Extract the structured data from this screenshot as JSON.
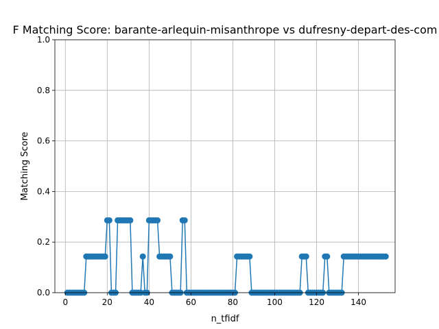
{
  "chart_data": {
    "type": "line",
    "title": "F Matching Score: barante-arlequin-misanthrope vs dufresny-depart-des-com",
    "xlabel": "n_tfidf",
    "ylabel": "Matching Score",
    "xlim": [
      -5,
      157.5
    ],
    "ylim": [
      0,
      1.0
    ],
    "xticks": [
      0,
      20,
      40,
      60,
      80,
      100,
      120,
      140
    ],
    "yticks": [
      0.0,
      0.2,
      0.4,
      0.6,
      0.8,
      1.0
    ],
    "ytick_labels": [
      "0.0",
      "0.2",
      "0.4",
      "0.6",
      "0.8",
      "1.0"
    ],
    "grid": true,
    "color": "#1f77b4",
    "marker": "circle",
    "x_start": 1,
    "x_step": 1,
    "y_values": [
      0,
      0,
      0,
      0,
      0,
      0,
      0,
      0,
      0,
      0.143,
      0.143,
      0.143,
      0.143,
      0.143,
      0.143,
      0.143,
      0.143,
      0.143,
      0.143,
      0.286,
      0.286,
      0,
      0,
      0,
      0.286,
      0.286,
      0.286,
      0.286,
      0.286,
      0.286,
      0.286,
      0,
      0,
      0,
      0,
      0,
      0.143,
      0,
      0,
      0.286,
      0.286,
      0.286,
      0.286,
      0.286,
      0.143,
      0.143,
      0.143,
      0.143,
      0.143,
      0.143,
      0,
      0,
      0,
      0,
      0,
      0.286,
      0.286,
      0,
      0,
      0,
      0,
      0,
      0,
      0,
      0,
      0,
      0,
      0,
      0,
      0,
      0,
      0,
      0,
      0,
      0,
      0,
      0,
      0,
      0,
      0,
      0,
      0.143,
      0.143,
      0.143,
      0.143,
      0.143,
      0.143,
      0.143,
      0,
      0,
      0,
      0,
      0,
      0,
      0,
      0,
      0,
      0,
      0,
      0,
      0,
      0,
      0,
      0,
      0,
      0,
      0,
      0,
      0,
      0,
      0,
      0,
      0.143,
      0.143,
      0.143,
      0,
      0,
      0,
      0,
      0,
      0,
      0,
      0,
      0.143,
      0.143,
      0,
      0,
      0,
      0,
      0,
      0,
      0,
      0.143,
      0.143,
      0.143,
      0.143,
      0.143,
      0.143,
      0.143,
      0.143,
      0.143,
      0.143,
      0.143,
      0.143,
      0.143,
      0.143,
      0.143,
      0.143,
      0.143,
      0.143,
      0.143,
      0.143,
      0.143
    ]
  }
}
